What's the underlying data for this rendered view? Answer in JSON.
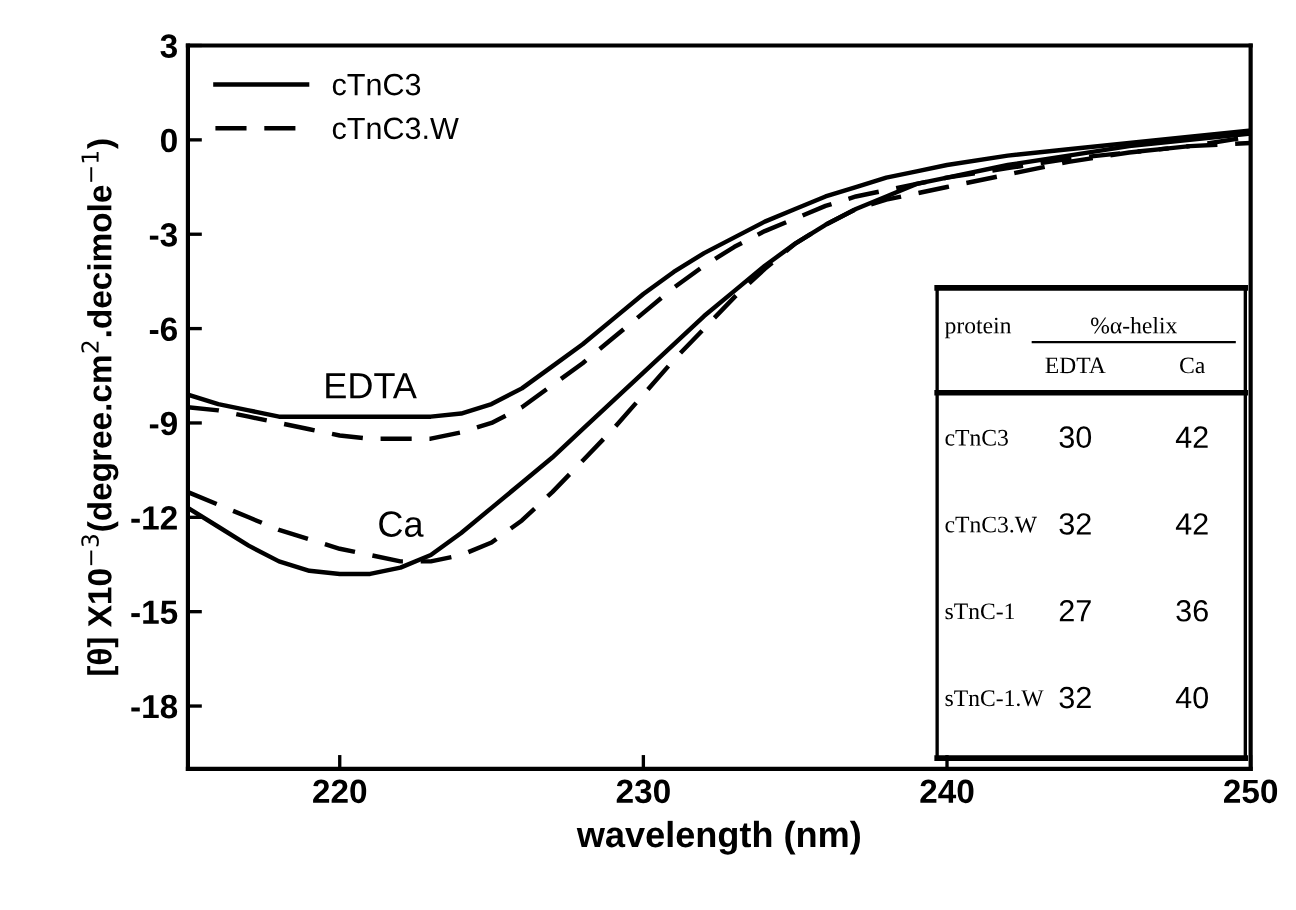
{
  "chart_data": {
    "type": "line",
    "xlabel": "wavelength (nm)",
    "ylabel": "[θ] X10$^{−3}$(degree.cm$^{2}$.decimole$^{−1}$)",
    "xlim": [
      215,
      250
    ],
    "ylim": [
      -20,
      3
    ],
    "xticks": [
      220,
      230,
      240,
      250
    ],
    "yticks": [
      3,
      0,
      -3,
      -6,
      -9,
      -12,
      -15,
      -18
    ],
    "grid": false,
    "legend": "top left",
    "marker": "none",
    "series": [
      {
        "name": "cTnC3",
        "color": "#000000",
        "line_style": "solid",
        "x": [
          215,
          216,
          217,
          218,
          219,
          220,
          221,
          222,
          223,
          224,
          225,
          226,
          227,
          228,
          229,
          230,
          231,
          232,
          233,
          234,
          235,
          236,
          237,
          238,
          239,
          240,
          242,
          244,
          246,
          248,
          250
        ],
        "values": [
          -8.1,
          -8.4,
          -8.6,
          -8.8,
          -8.8,
          -8.8,
          -8.8,
          -8.8,
          -8.8,
          -8.7,
          -8.4,
          -7.9,
          -7.2,
          -6.5,
          -5.7,
          -4.9,
          -4.2,
          -3.6,
          -3.1,
          -2.6,
          -2.2,
          -1.8,
          -1.5,
          -1.2,
          -1.0,
          -0.8,
          -0.5,
          -0.3,
          -0.1,
          0.1,
          0.3
        ]
      },
      {
        "name": "cTnC3.W",
        "color": "#000000",
        "line_style": "dashed",
        "x": [
          215,
          216,
          217,
          218,
          219,
          220,
          221,
          222,
          223,
          224,
          225,
          226,
          227,
          228,
          229,
          230,
          231,
          232,
          233,
          234,
          235,
          236,
          237,
          238,
          239,
          240,
          242,
          244,
          246,
          248,
          250
        ],
        "values": [
          -8.5,
          -8.6,
          -8.8,
          -9.0,
          -9.2,
          -9.4,
          -9.5,
          -9.5,
          -9.5,
          -9.3,
          -9.0,
          -8.5,
          -7.8,
          -7.1,
          -6.3,
          -5.5,
          -4.7,
          -4.0,
          -3.4,
          -2.9,
          -2.5,
          -2.1,
          -1.8,
          -1.6,
          -1.4,
          -1.2,
          -0.9,
          -0.6,
          -0.4,
          -0.2,
          -0.1
        ]
      },
      {
        "color": "#000000",
        "line_style": "solid",
        "x": [
          215,
          216,
          217,
          218,
          219,
          220,
          221,
          222,
          223,
          224,
          225,
          226,
          227,
          228,
          229,
          230,
          231,
          232,
          233,
          234,
          235,
          236,
          237,
          238,
          239,
          240,
          242,
          244,
          246,
          248,
          250
        ],
        "values": [
          -11.7,
          -12.3,
          -12.9,
          -13.4,
          -13.7,
          -13.8,
          -13.8,
          -13.6,
          -13.2,
          -12.5,
          -11.7,
          -10.9,
          -10.1,
          -9.2,
          -8.3,
          -7.4,
          -6.5,
          -5.6,
          -4.8,
          -4.0,
          -3.3,
          -2.7,
          -2.2,
          -1.8,
          -1.4,
          -1.2,
          -0.8,
          -0.5,
          -0.2,
          0.0,
          0.2
        ]
      },
      {
        "color": "#000000",
        "line_style": "dashed",
        "x": [
          215,
          216,
          217,
          218,
          219,
          220,
          221,
          222,
          223,
          224,
          225,
          226,
          227,
          228,
          229,
          230,
          231,
          232,
          233,
          234,
          235,
          236,
          237,
          238,
          239,
          240,
          242,
          244,
          246,
          248,
          250
        ],
        "values": [
          -11.2,
          -11.6,
          -12.0,
          -12.4,
          -12.7,
          -13.0,
          -13.2,
          -13.4,
          -13.4,
          -13.2,
          -12.8,
          -12.1,
          -11.2,
          -10.2,
          -9.2,
          -8.1,
          -7.0,
          -6.0,
          -5.0,
          -4.1,
          -3.3,
          -2.7,
          -2.2,
          -1.9,
          -1.7,
          -1.5,
          -1.1,
          -0.7,
          -0.4,
          -0.2,
          0.1
        ]
      }
    ],
    "annotations": [
      {
        "text": "EDTA",
        "x": 221,
        "y": -8.8
      },
      {
        "text": "Ca",
        "x": 222,
        "y": -13.2
      },
      "protein",
      "%α-helix",
      "EDTA",
      "Ca",
      "cTnC3",
      "30",
      "42",
      "cTnC3.W",
      "32",
      "42",
      "sTnC-1",
      "27",
      "36",
      "sTnC-1.W",
      "32",
      "40"
    ]
  }
}
